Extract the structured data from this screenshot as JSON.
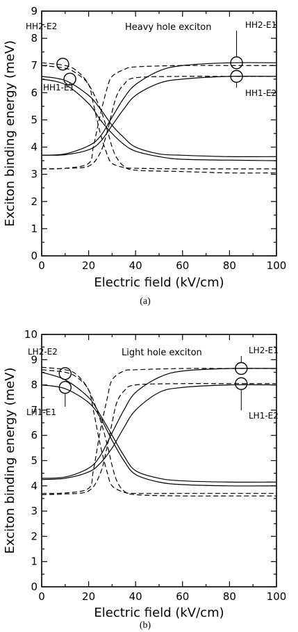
{
  "chart_data": [
    {
      "type": "line",
      "caption": "(a)",
      "title": "Heavy hole exciton",
      "xlabel": "Electric field (kV/cm)",
      "ylabel": "Exciton binding energy (meV)",
      "xlim": [
        0,
        100
      ],
      "ylim": [
        0,
        9
      ],
      "xticks": [
        0,
        20,
        40,
        60,
        80,
        100
      ],
      "yticks": [
        0,
        1,
        2,
        3,
        4,
        5,
        6,
        7,
        8,
        9
      ],
      "grid": false,
      "legend": "none",
      "series": [
        {
          "style": "solid",
          "x": [
            0,
            10,
            20,
            25,
            30,
            35,
            40,
            50,
            60,
            80,
            100
          ],
          "y": [
            6.6,
            6.45,
            5.9,
            5.4,
            4.8,
            4.35,
            4.0,
            3.75,
            3.7,
            3.65,
            3.65
          ]
        },
        {
          "style": "solid",
          "x": [
            0,
            10,
            20,
            25,
            30,
            35,
            40,
            50,
            60,
            80,
            100
          ],
          "y": [
            6.5,
            6.3,
            5.6,
            5.0,
            4.5,
            4.1,
            3.85,
            3.65,
            3.55,
            3.52,
            3.5
          ]
        },
        {
          "style": "solid",
          "x": [
            0,
            10,
            20,
            25,
            30,
            35,
            40,
            50,
            60,
            80,
            100
          ],
          "y": [
            3.7,
            3.75,
            4.05,
            4.4,
            5.1,
            5.8,
            6.3,
            6.8,
            7.0,
            7.1,
            7.1
          ]
        },
        {
          "style": "solid",
          "x": [
            0,
            10,
            20,
            25,
            30,
            35,
            40,
            50,
            60,
            80,
            100
          ],
          "y": [
            3.7,
            3.72,
            3.9,
            4.2,
            4.8,
            5.4,
            5.9,
            6.35,
            6.5,
            6.6,
            6.6
          ]
        },
        {
          "style": "dashed",
          "x": [
            0,
            10,
            15,
            20,
            22,
            25,
            28,
            30,
            35,
            40,
            60,
            80,
            100
          ],
          "y": [
            7.1,
            7.0,
            6.8,
            6.3,
            5.6,
            4.5,
            3.7,
            3.4,
            3.25,
            3.22,
            3.2,
            3.2,
            3.2
          ]
        },
        {
          "style": "dashed",
          "x": [
            0,
            10,
            15,
            20,
            25,
            28,
            30,
            32,
            35,
            40,
            60,
            80,
            100
          ],
          "y": [
            7.0,
            6.9,
            6.7,
            6.3,
            5.4,
            4.6,
            4.0,
            3.6,
            3.3,
            3.15,
            3.1,
            3.05,
            3.05
          ]
        },
        {
          "style": "dashed",
          "x": [
            0,
            10,
            20,
            22,
            25,
            28,
            30,
            35,
            40,
            60,
            80,
            100
          ],
          "y": [
            3.2,
            3.22,
            3.4,
            4.0,
            5.2,
            6.2,
            6.6,
            6.85,
            6.95,
            7.0,
            7.0,
            7.0
          ]
        },
        {
          "style": "dashed",
          "x": [
            0,
            10,
            20,
            25,
            28,
            30,
            32,
            35,
            40,
            60,
            80,
            100
          ],
          "y": [
            3.2,
            3.22,
            3.3,
            3.8,
            4.6,
            5.3,
            5.9,
            6.3,
            6.55,
            6.6,
            6.6,
            6.6
          ]
        }
      ],
      "annotations": [
        {
          "text": "HH2-E2",
          "x": 9,
          "y": 7.05
        },
        {
          "text": "HH1-E1",
          "x": 12,
          "y": 6.5
        },
        {
          "text": "HH2-E1",
          "x": 83,
          "y": 7.1
        },
        {
          "text": "HH1-E2",
          "x": 83,
          "y": 6.6
        }
      ]
    },
    {
      "type": "line",
      "caption": "(b)",
      "title": "Light hole exciton",
      "xlabel": "Electric field (kV/cm)",
      "ylabel": "Exciton binding energy (meV)",
      "xlim": [
        0,
        100
      ],
      "ylim": [
        0,
        10
      ],
      "xticks": [
        0,
        20,
        40,
        60,
        80,
        100
      ],
      "yticks": [
        0,
        1,
        2,
        3,
        4,
        5,
        6,
        7,
        8,
        9,
        10
      ],
      "grid": false,
      "legend": "none",
      "series": [
        {
          "style": "solid",
          "x": [
            0,
            10,
            20,
            25,
            30,
            35,
            40,
            50,
            60,
            80,
            100
          ],
          "y": [
            8.5,
            8.2,
            7.5,
            6.8,
            6.0,
            5.2,
            4.6,
            4.3,
            4.2,
            4.15,
            4.15
          ]
        },
        {
          "style": "solid",
          "x": [
            0,
            10,
            20,
            25,
            30,
            35,
            40,
            50,
            60,
            80,
            100
          ],
          "y": [
            8.0,
            7.85,
            7.3,
            6.7,
            5.8,
            5.0,
            4.45,
            4.15,
            4.05,
            4.0,
            4.0
          ]
        },
        {
          "style": "solid",
          "x": [
            0,
            10,
            20,
            25,
            30,
            35,
            40,
            50,
            60,
            80,
            100
          ],
          "y": [
            4.3,
            4.35,
            4.7,
            5.2,
            6.1,
            7.0,
            7.7,
            8.3,
            8.55,
            8.65,
            8.65
          ]
        },
        {
          "style": "solid",
          "x": [
            0,
            10,
            20,
            25,
            30,
            35,
            40,
            50,
            60,
            80,
            100
          ],
          "y": [
            4.25,
            4.3,
            4.55,
            4.9,
            5.5,
            6.3,
            7.0,
            7.7,
            7.9,
            8.0,
            8.0
          ]
        },
        {
          "style": "dashed",
          "x": [
            0,
            10,
            15,
            20,
            22,
            25,
            28,
            30,
            35,
            40,
            60,
            80,
            100
          ],
          "y": [
            8.7,
            8.6,
            8.4,
            7.8,
            7.0,
            5.6,
            4.5,
            4.0,
            3.75,
            3.7,
            3.7,
            3.7,
            3.7
          ]
        },
        {
          "style": "dashed",
          "x": [
            0,
            10,
            15,
            20,
            25,
            28,
            30,
            32,
            35,
            40,
            60,
            80,
            100
          ],
          "y": [
            8.6,
            8.5,
            8.3,
            7.8,
            6.6,
            5.6,
            4.8,
            4.2,
            3.8,
            3.65,
            3.6,
            3.6,
            3.6
          ]
        },
        {
          "style": "dashed",
          "x": [
            0,
            10,
            20,
            22,
            25,
            28,
            30,
            35,
            40,
            60,
            80,
            100
          ],
          "y": [
            3.7,
            3.72,
            3.9,
            4.6,
            6.2,
            7.5,
            8.2,
            8.55,
            8.6,
            8.65,
            8.65,
            8.65
          ]
        },
        {
          "style": "dashed",
          "x": [
            0,
            10,
            20,
            25,
            28,
            30,
            32,
            35,
            40,
            60,
            80,
            100
          ],
          "y": [
            3.65,
            3.68,
            3.8,
            4.5,
            5.6,
            6.5,
            7.3,
            7.75,
            8.0,
            8.05,
            8.05,
            8.05
          ]
        }
      ],
      "annotations": [
        {
          "text": "LH2-E2",
          "x": 10,
          "y": 8.45
        },
        {
          "text": "LH1-E1",
          "x": 10,
          "y": 7.9
        },
        {
          "text": "LH2-E1",
          "x": 85,
          "y": 8.65
        },
        {
          "text": "LH1-E2",
          "x": 85,
          "y": 8.05
        }
      ]
    }
  ]
}
